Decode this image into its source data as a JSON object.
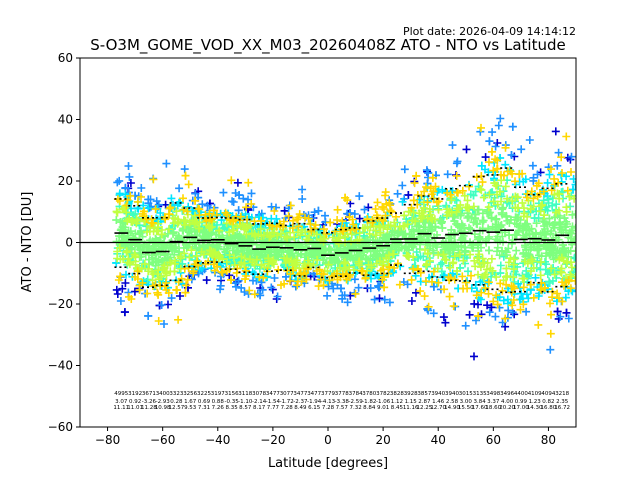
{
  "plot_date": "Plot date: 2026-04-09 14:14:12",
  "chart_data": {
    "type": "scatter",
    "title": "S-O3M_GOME_VOD_XX_M03_20260408Z ATO - NTO vs Latitude",
    "xlabel": "Latitude [degrees]",
    "ylabel": "ATO - NTO [DU]",
    "xlim": [
      -90,
      90
    ],
    "ylim": [
      -60,
      60
    ],
    "xticks": [
      -80,
      -60,
      -40,
      -20,
      0,
      20,
      40,
      60,
      80
    ],
    "yticks": [
      -60,
      -40,
      -20,
      0,
      20,
      40,
      60
    ],
    "xtick_labels": [
      "−80",
      "−60",
      "−40",
      "−20",
      "0",
      "20",
      "40",
      "60",
      "80"
    ],
    "ytick_labels": [
      "−60",
      "−40",
      "−20",
      "0",
      "20",
      "40",
      "60"
    ],
    "grid": false,
    "marker": "+",
    "color_levels": [
      "#0000cd",
      "#1e90ff",
      "#00e5ff",
      "#40ffc0",
      "#7fff7f",
      "#c0ff40",
      "#ffd700"
    ],
    "zero_line": 0,
    "bins": [
      {
        "lat": -75,
        "mean": 3.07,
        "std": 11.11
      },
      {
        "lat": -70,
        "mean": 0.92,
        "std": 11.01
      },
      {
        "lat": -65,
        "mean": -3.26,
        "std": 11.28
      },
      {
        "lat": -60,
        "mean": -2.93,
        "std": 10.98
      },
      {
        "lat": -55,
        "mean": 0.28,
        "std": 12.57
      },
      {
        "lat": -50,
        "mean": 1.67,
        "std": 9.53
      },
      {
        "lat": -45,
        "mean": 0.69,
        "std": 7.31
      },
      {
        "lat": -40,
        "mean": 0.88,
        "std": 7.26
      },
      {
        "lat": -35,
        "mean": -0.35,
        "std": 8.35
      },
      {
        "lat": -30,
        "mean": -1.1,
        "std": 8.57
      },
      {
        "lat": -25,
        "mean": -2.14,
        "std": 8.17
      },
      {
        "lat": -20,
        "mean": -1.54,
        "std": 7.77
      },
      {
        "lat": -15,
        "mean": -1.72,
        "std": 7.28
      },
      {
        "lat": -10,
        "mean": -2.37,
        "std": 8.49
      },
      {
        "lat": -5,
        "mean": -1.94,
        "std": 6.15
      },
      {
        "lat": 0,
        "mean": -4.13,
        "std": 7.28
      },
      {
        "lat": 5,
        "mean": -3.38,
        "std": 7.57
      },
      {
        "lat": 10,
        "mean": -2.59,
        "std": 7.32
      },
      {
        "lat": 15,
        "mean": -1.82,
        "std": 8.84
      },
      {
        "lat": 20,
        "mean": -1.06,
        "std": 9.01
      },
      {
        "lat": 25,
        "mean": 1.12,
        "std": 8.45
      },
      {
        "lat": 30,
        "mean": 1.15,
        "std": 11.16
      },
      {
        "lat": 35,
        "mean": 2.87,
        "std": 12.25
      },
      {
        "lat": 40,
        "mean": 1.46,
        "std": 12.7
      },
      {
        "lat": 45,
        "mean": 2.58,
        "std": 14.9
      },
      {
        "lat": 50,
        "mean": 3.0,
        "std": 15.5
      },
      {
        "lat": 55,
        "mean": 3.84,
        "std": 17.6
      },
      {
        "lat": 60,
        "mean": 3.37,
        "std": 18.6
      },
      {
        "lat": 65,
        "mean": 4.0,
        "std": 20.2
      },
      {
        "lat": 70,
        "mean": 0.99,
        "std": 17.0
      },
      {
        "lat": 75,
        "mean": 1.23,
        "std": 14.3
      },
      {
        "lat": 80,
        "mean": 0.82,
        "std": 16.8
      },
      {
        "lat": 85,
        "mean": 2.35,
        "std": 16.72
      }
    ],
    "annotation_rows": [
      [
        "4995",
        "3192",
        "3671",
        "3400",
        "3323",
        "3256",
        "3225",
        "3197",
        "3156",
        "3118",
        "3078",
        "3477",
        "3077",
        "3477",
        "3477",
        "3779",
        "3778",
        "3784",
        "3780",
        "3782",
        "3828",
        "3928",
        "3857",
        "3940",
        "3940",
        "3015",
        "3135",
        "3498",
        "3496",
        "4400",
        "4109",
        "4094",
        "3218"
      ],
      [
        "3.07",
        "0.92",
        "-3.26",
        "-2.93",
        "0.28",
        "1.67",
        "0.69",
        "0.88",
        "-0.35",
        "-1.10",
        "-2.14",
        "-1.54",
        "-1.72",
        "-2.37",
        "-1.94",
        "-4.13",
        "-3.38",
        "-2.59",
        "-1.82",
        "-1.06",
        "1.12",
        "1.15",
        "2.87",
        "1.46",
        "2.58",
        "3.00",
        "3.84",
        "3.37",
        "4.00",
        "0.99",
        "1.23",
        "0.82",
        "2.35"
      ],
      [
        "11.11",
        "11.01",
        "11.28",
        "10.98",
        "12.57",
        "9.53",
        "7.31",
        "7.26",
        "8.35",
        "8.57",
        "8.17",
        "7.77",
        "7.28",
        "8.49",
        "6.15",
        "7.28",
        "7.57",
        "7.32",
        "8.84",
        "9.01",
        "8.45",
        "11.16",
        "12.25",
        "12.70",
        "14.90",
        "15.50",
        "17.60",
        "18.60",
        "20.20",
        "17.00",
        "14.30",
        "16.80",
        "16.72"
      ]
    ]
  }
}
